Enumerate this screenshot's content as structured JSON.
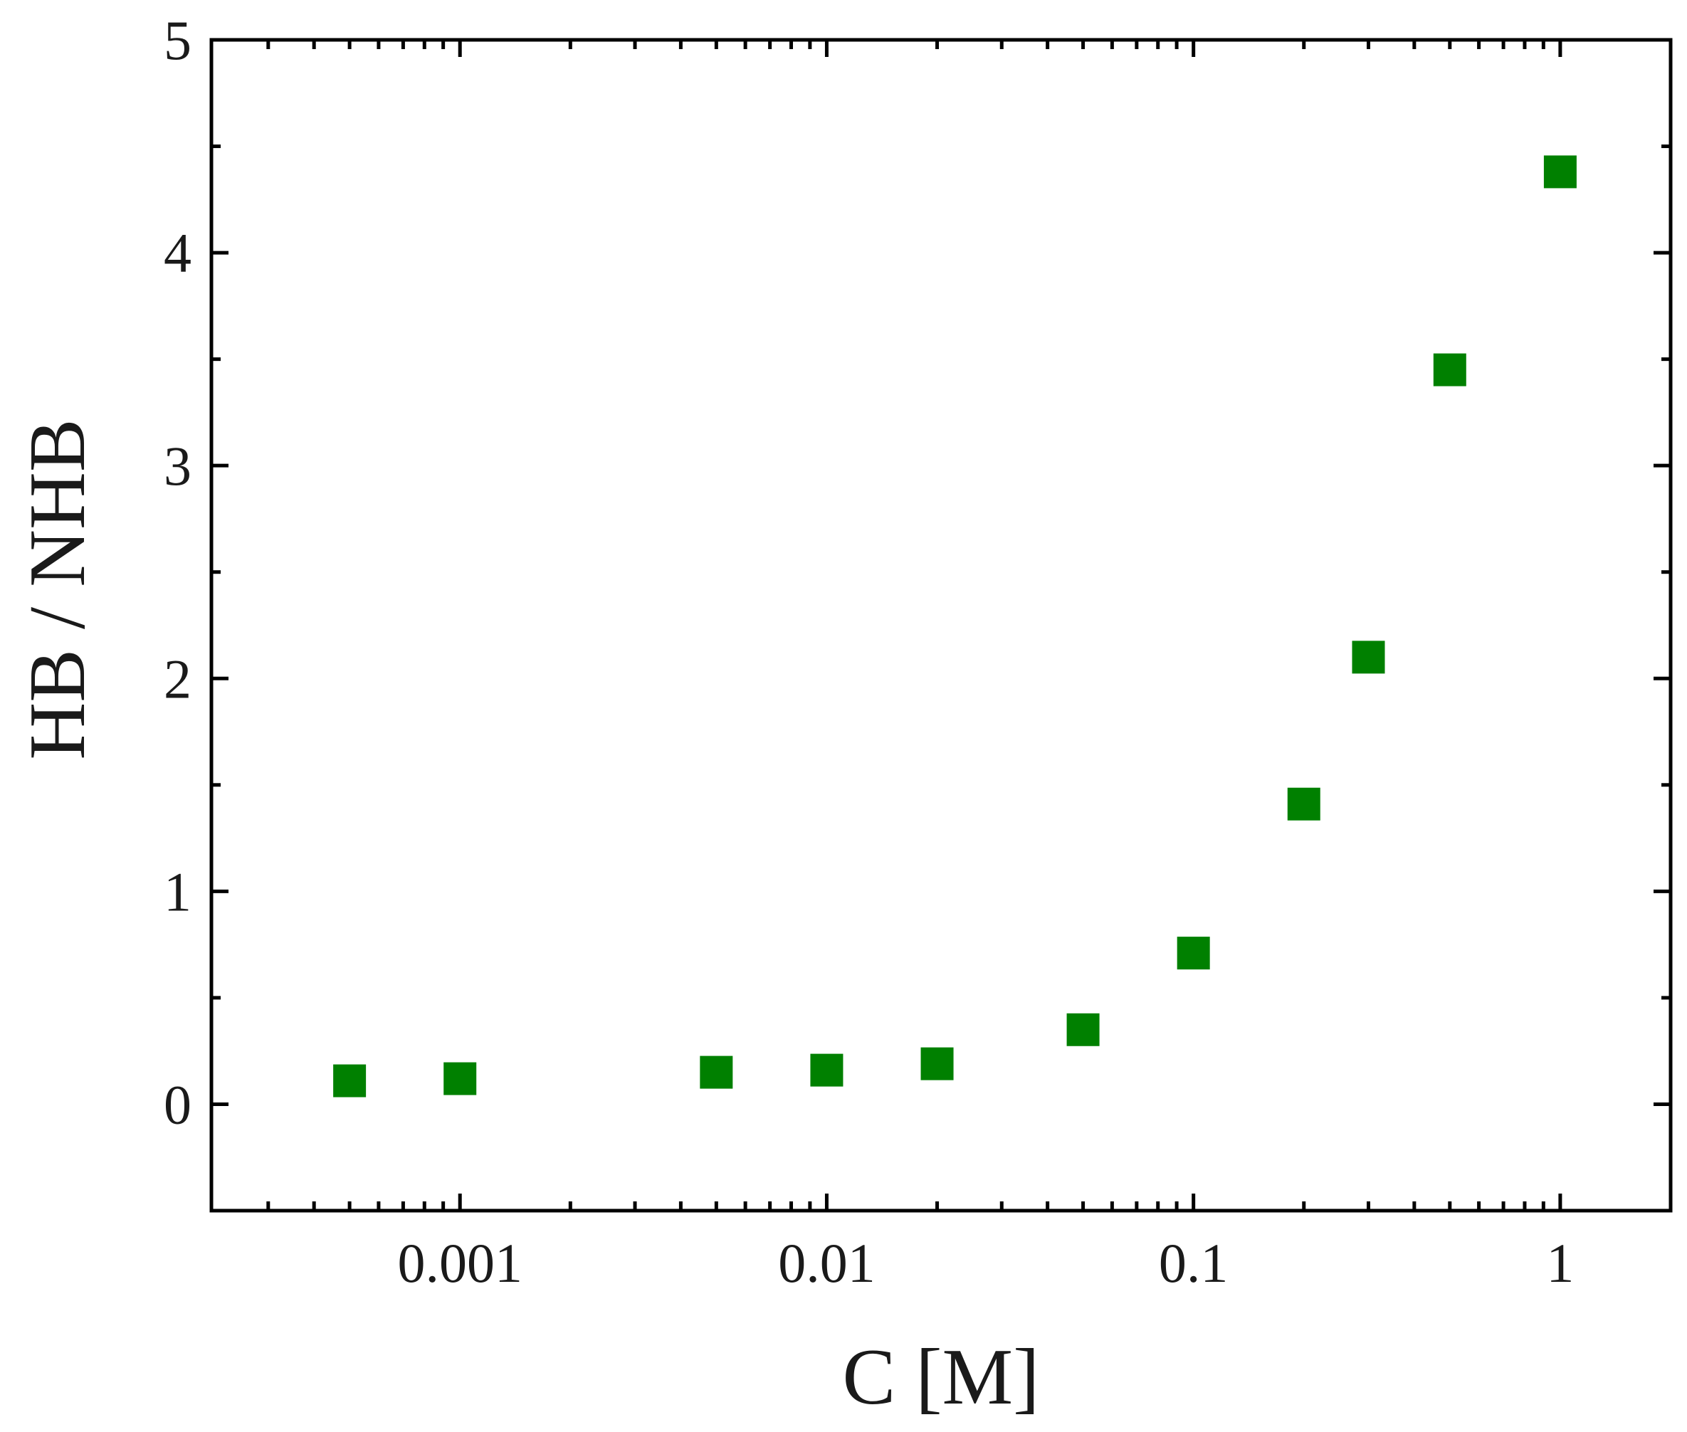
{
  "chart_data": {
    "type": "scatter",
    "xlabel": "C [M]",
    "ylabel": "HB / NHB",
    "xscale": "log",
    "xlim": [
      0.00021,
      2.0
    ],
    "ylim": [
      -0.5,
      5
    ],
    "grid": false,
    "x_tick_labels": [
      {
        "value": 0.001,
        "label": "0.001"
      },
      {
        "value": 0.01,
        "label": "0.01"
      },
      {
        "value": 0.1,
        "label": "0.1"
      },
      {
        "value": 1,
        "label": "1"
      }
    ],
    "y_tick_labels": [
      {
        "value": 0,
        "label": "0"
      },
      {
        "value": 1,
        "label": "1"
      },
      {
        "value": 2,
        "label": "2"
      },
      {
        "value": 3,
        "label": "3"
      },
      {
        "value": 4,
        "label": "4"
      },
      {
        "value": 5,
        "label": "5"
      }
    ],
    "series": [
      {
        "marker": "square",
        "color": "#008000",
        "x": [
          0.0005,
          0.001,
          0.005,
          0.01,
          0.02,
          0.05,
          0.1,
          0.2,
          0.3,
          0.5,
          1
        ],
        "y": [
          0.11,
          0.12,
          0.15,
          0.16,
          0.19,
          0.35,
          0.71,
          1.41,
          2.1,
          3.45,
          4.38
        ]
      }
    ]
  }
}
